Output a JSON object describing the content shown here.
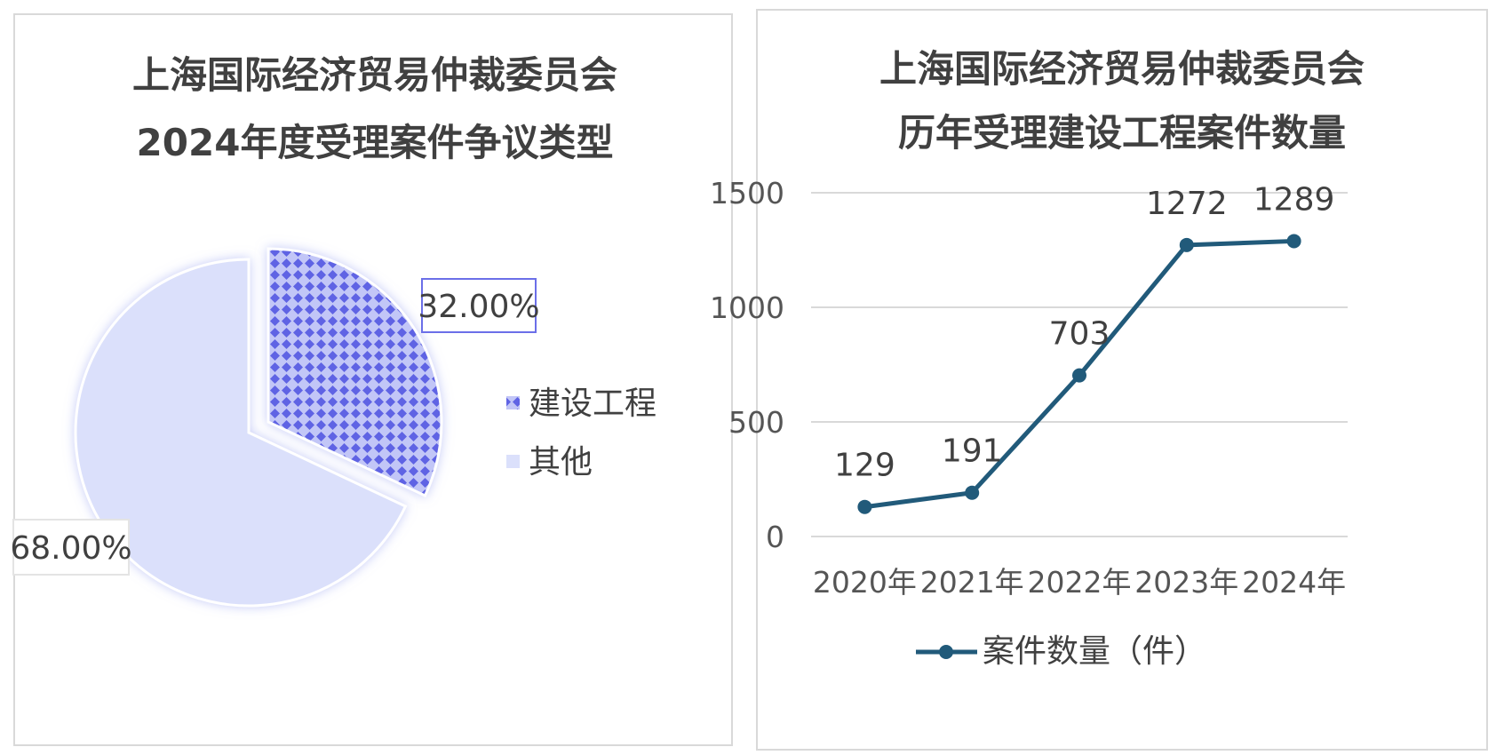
{
  "colors": {
    "pie_construction": "#6b6fe8",
    "pie_other": "#dbe0fb",
    "line": "#215a7a",
    "grid": "#d9d9d9"
  },
  "chart_data": [
    {
      "type": "pie",
      "title": "上海国际经济贸易仲裁委员会",
      "subtitle": "2024年度受理案件争议类型",
      "categories": [
        "建设工程",
        "其他"
      ],
      "values": [
        32.0,
        68.0
      ],
      "labels": [
        "32.00%",
        "68.00%"
      ],
      "legend": "right"
    },
    {
      "type": "line",
      "title": "上海国际经济贸易仲裁委员会",
      "subtitle": "历年受理建设工程案件数量",
      "categories": [
        "2020年",
        "2021年",
        "2022年",
        "2023年",
        "2024年"
      ],
      "series": [
        {
          "name": "案件数量（件）",
          "values": [
            129,
            191,
            703,
            1272,
            1289
          ]
        }
      ],
      "ylim": [
        0,
        1500
      ],
      "yticks": [
        0,
        500,
        1000,
        1500
      ],
      "grid": true,
      "legend": "bottom"
    }
  ]
}
